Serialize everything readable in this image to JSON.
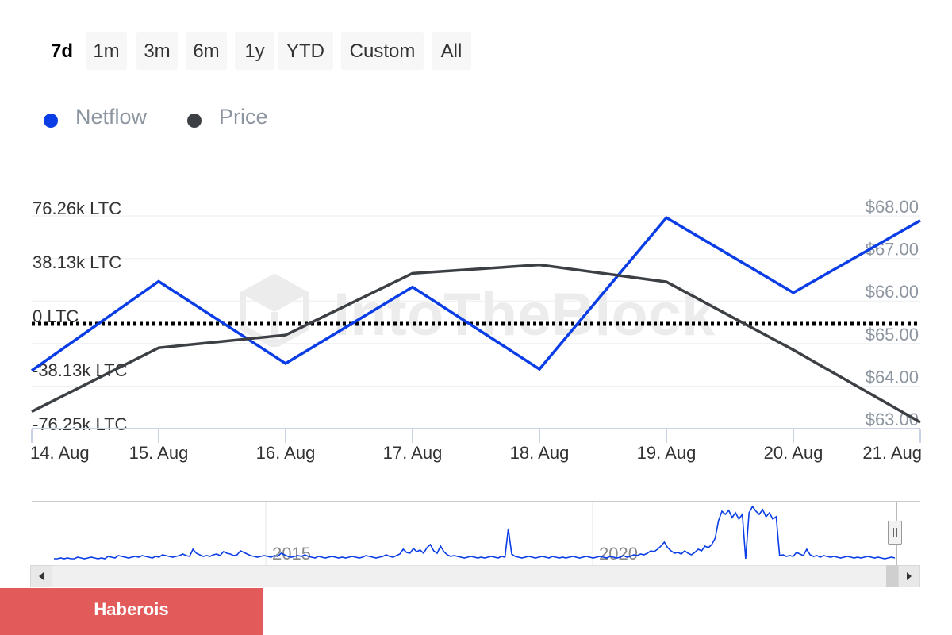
{
  "range_selector": {
    "buttons": [
      "7d",
      "1m",
      "3m",
      "6m",
      "1y",
      "YTD",
      "Custom",
      "All"
    ],
    "active": "7d"
  },
  "legend": {
    "items": [
      {
        "label": "Netflow",
        "color": "#0a3de6"
      },
      {
        "label": "Price",
        "color": "#3c3f44"
      }
    ]
  },
  "watermark": "IntoTheBlock",
  "chart_data": {
    "type": "line",
    "x": [
      "14. Aug",
      "15. Aug",
      "16. Aug",
      "17. Aug",
      "18. Aug",
      "19. Aug",
      "20. Aug",
      "21. Aug"
    ],
    "y_left": {
      "ticks": [
        "76.26k LTC",
        "38.13k LTC",
        "0 LTC",
        "-38.13k LTC",
        "-76.25k LTC"
      ],
      "range": [
        -76250,
        76260
      ]
    },
    "y_right": {
      "ticks": [
        "$68.00",
        "$67.00",
        "$66.00",
        "$65.00",
        "$64.00",
        "$63.00"
      ],
      "range": [
        63,
        68
      ]
    },
    "zero_line": "dotted",
    "series": [
      {
        "name": "Netflow",
        "axis": "left",
        "color": "#0a3de6",
        "values": [
          -33000,
          30000,
          -28000,
          26000,
          -32000,
          75000,
          22000,
          73000
        ]
      },
      {
        "name": "Price",
        "axis": "right",
        "color": "#3c3f44",
        "values": [
          63.4,
          64.9,
          65.2,
          66.65,
          66.85,
          66.45,
          64.85,
          63.15
        ]
      }
    ]
  },
  "navigator": {
    "labels": [
      "2015",
      "2020"
    ],
    "series_color": "#0a3de6",
    "values": [
      2,
      2,
      3,
      2,
      3,
      2,
      2,
      4,
      3,
      2,
      3,
      4,
      3,
      2,
      3,
      2,
      5,
      4,
      3,
      6,
      5,
      4,
      3,
      4,
      5,
      4,
      6,
      5,
      4,
      3,
      5,
      4,
      7,
      6,
      5,
      4,
      5,
      6,
      8,
      6,
      5,
      14,
      9,
      7,
      5,
      6,
      5,
      7,
      8,
      6,
      11,
      9,
      8,
      6,
      7,
      12,
      10,
      8,
      6,
      5,
      4,
      5,
      6,
      5,
      4,
      6,
      5,
      9,
      7,
      5,
      4,
      5,
      6,
      5,
      7,
      5,
      4,
      3,
      5,
      4,
      3,
      4,
      5,
      4,
      3,
      4,
      3,
      4,
      5,
      4,
      3,
      4,
      6,
      5,
      4,
      3,
      4,
      5,
      7,
      5,
      4,
      6,
      8,
      14,
      10,
      9,
      15,
      11,
      13,
      9,
      16,
      20,
      12,
      9,
      18,
      11,
      7,
      5,
      6,
      5,
      4,
      3,
      4,
      5,
      4,
      3,
      4,
      3,
      4,
      5,
      4,
      3,
      5,
      4,
      40,
      8,
      5,
      4,
      3,
      4,
      5,
      4,
      3,
      4,
      5,
      4,
      3,
      5,
      4,
      3,
      4,
      3,
      4,
      5,
      4,
      3,
      4,
      5,
      4,
      3,
      4,
      5,
      4,
      3,
      5,
      4,
      3,
      4,
      6,
      4,
      5,
      7,
      6,
      8,
      7,
      9,
      12,
      11,
      14,
      18,
      23,
      16,
      12,
      9,
      10,
      8,
      12,
      9,
      7,
      10,
      14,
      12,
      18,
      16,
      20,
      28,
      50,
      62,
      58,
      63,
      54,
      60,
      52,
      58,
      2,
      60,
      68,
      62,
      58,
      64,
      55,
      60,
      52,
      55,
      6,
      7,
      5,
      6,
      5,
      10,
      8,
      6,
      14,
      7,
      5,
      6,
      4,
      6,
      5,
      4,
      5,
      4,
      3,
      4,
      5,
      4,
      3,
      4,
      3,
      4,
      5,
      4,
      3,
      4,
      3,
      2,
      3,
      4,
      3
    ]
  },
  "badge": {
    "label": "Haberois"
  }
}
